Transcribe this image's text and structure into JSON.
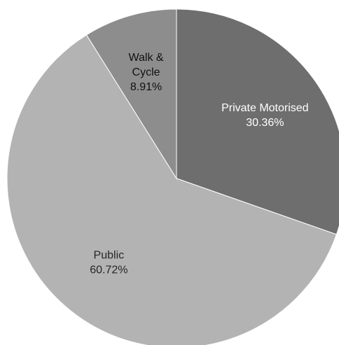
{
  "chart_data": {
    "type": "pie",
    "slices": [
      {
        "label_lines": [
          "Private Motorised"
        ],
        "percent_label": "30.36%",
        "value": 30.36,
        "color": "#6e6e6e",
        "text_color": "#ffffff"
      },
      {
        "label_lines": [
          "Public"
        ],
        "percent_label": "60.72%",
        "value": 60.72,
        "color": "#b3b3b3",
        "text_color": "#262626"
      },
      {
        "label_lines": [
          "Walk &",
          "Cycle"
        ],
        "percent_label": "8.91%",
        "value": 8.91,
        "color": "#8d8d8d",
        "text_color": "#111111"
      }
    ],
    "start_angle_deg": 0,
    "direction": "clockwise",
    "legend": "none"
  }
}
